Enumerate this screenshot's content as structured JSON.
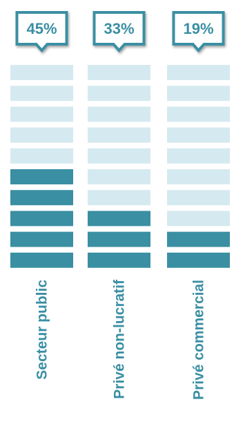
{
  "chart_data": {
    "type": "bar",
    "title": "",
    "categories": [
      "Secteur public",
      "Privé non-lucratif",
      "Privé commercial"
    ],
    "values": [
      45,
      33,
      19
    ],
    "labels": [
      "45%",
      "33%",
      "19%"
    ],
    "unit": "%",
    "segments_per_column": 10,
    "filled_segments": [
      5,
      3,
      2
    ],
    "colors": {
      "filled": "#3a8fa3",
      "empty": "#d5e9f0",
      "callout_border": "#3a8fa3",
      "label_text": "#3a8fa3"
    }
  }
}
